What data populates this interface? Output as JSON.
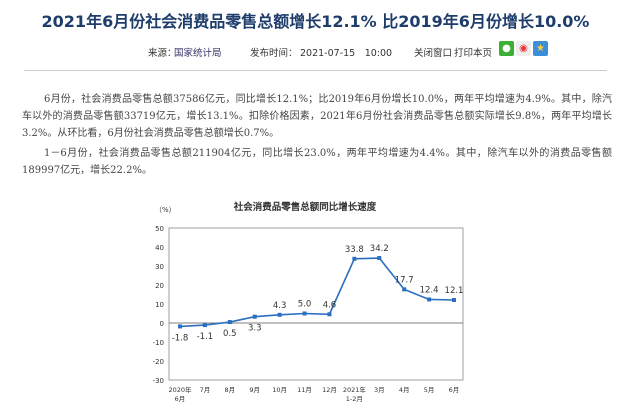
{
  "header": {
    "title": "2021年6月份社会消费品零售总额增长12.1% 比2019年6月份增长10.0%"
  },
  "meta": {
    "source_label": "来源：",
    "source": "国家统计局",
    "time_label": "发布时间：",
    "time": "2021-07-15　10:00",
    "close": "关闭窗口",
    "print": "打印本页",
    "share_icons": [
      "wechat-icon",
      "weibo-icon",
      "favorite-star-icon"
    ]
  },
  "paragraphs": [
    "6月份，社会消费品零售总额37586亿元，同比增长12.1%；比2019年6月份增长10.0%，两年平均增速为4.9%。其中，除汽车以外的消费品零售额33719亿元，增长13.1%。扣除价格因素，2021年6月份社会消费品零售总额实际增长9.8%，两年平均增长3.2%。从环比看，6月份社会消费品零售总额增长0.7%。",
    "1－6月份，社会消费品零售总额211904亿元，同比增长23.0%，两年平均增速为4.4%。其中，除汽车以外的消费品零售额189997亿元，增长22.2%。"
  ],
  "chart_data": {
    "type": "line",
    "title": "社会消费品零售总额同比增长速度",
    "ylabel": "（%）",
    "ylim": [
      -30,
      50
    ],
    "yticks": [
      50,
      40,
      30,
      20,
      10,
      0,
      -10,
      -20,
      -30
    ],
    "categories": [
      [
        "2020年",
        "6月"
      ],
      [
        "7月"
      ],
      [
        "8月"
      ],
      [
        "9月"
      ],
      [
        "10月"
      ],
      [
        "11月"
      ],
      [
        "12月"
      ],
      [
        "2021年",
        "1-2月"
      ],
      [
        "3月"
      ],
      [
        "4月"
      ],
      [
        "5月"
      ],
      [
        "6月"
      ]
    ],
    "values": [
      -1.8,
      -1.1,
      0.5,
      3.3,
      4.3,
      5.0,
      4.6,
      33.8,
      34.2,
      17.7,
      12.4,
      12.1
    ],
    "labels": [
      "-1.8",
      "-1.1",
      "0.5",
      "3.3",
      "4.3",
      "5.0",
      "4.6",
      "33.8",
      "34.2",
      "17.7",
      "12.4",
      "12.1"
    ],
    "color": "#2a6fc0",
    "grid": false
  }
}
